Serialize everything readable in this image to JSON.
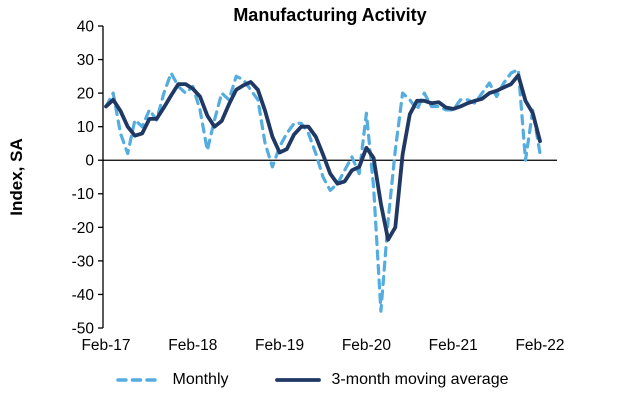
{
  "chart_data": {
    "type": "line",
    "title": "Manufacturing Activity",
    "ylabel": "Index, SA",
    "xlabel": "",
    "ylim": [
      -50,
      40
    ],
    "ytick_step": 10,
    "ytick_labels": [
      "40",
      "30",
      "20",
      "10",
      "0",
      "-10",
      "-20",
      "-30",
      "-40",
      "-50"
    ],
    "x_unit": "month",
    "x_start": "Feb-17",
    "x_end": "Feb-22",
    "x_tick_labels": [
      "Feb-17",
      "Feb-18",
      "Feb-19",
      "Feb-20",
      "Feb-21",
      "Feb-22"
    ],
    "x_tick_interval_months": 12,
    "grid": "off",
    "legend_position": "bottom",
    "axis_color": "#000000",
    "series": [
      {
        "name": "Monthly",
        "style": "dashed",
        "color": "#54ACDF",
        "values": [
          16,
          20,
          8,
          2,
          12,
          10,
          15,
          12,
          20,
          26,
          22,
          20,
          22,
          15,
          3,
          12,
          20,
          18,
          25,
          24,
          21,
          18,
          5,
          -2,
          4,
          8,
          11,
          11,
          8,
          2,
          -5,
          -9,
          -7,
          -3,
          1,
          -4,
          14,
          -8,
          -45,
          -18,
          3,
          20,
          18,
          15,
          20,
          16,
          16,
          15,
          15,
          18,
          18,
          17,
          20,
          23,
          19,
          23,
          26,
          27,
          0,
          15,
          2
        ]
      },
      {
        "name": "3-month moving average",
        "style": "solid",
        "color": "#1F3864",
        "values": [
          16,
          18,
          14.7,
          10,
          7.3,
          8,
          12.3,
          12.3,
          15.7,
          19.3,
          22.7,
          22.7,
          21.3,
          19,
          13.3,
          10,
          11.7,
          16.7,
          21,
          22.3,
          23.3,
          21,
          14.7,
          7,
          2.3,
          3.3,
          7.7,
          10,
          10,
          7,
          1.7,
          -4,
          -7,
          -6.3,
          -3,
          -2,
          3.7,
          0.7,
          -13,
          -23.7,
          -20,
          1.7,
          13.7,
          17.7,
          17.7,
          17,
          17.3,
          15.7,
          15.3,
          16,
          17,
          17.7,
          18.3,
          20,
          20.7,
          21.7,
          22.7,
          25.3,
          17.7,
          14,
          5.7
        ]
      }
    ]
  }
}
